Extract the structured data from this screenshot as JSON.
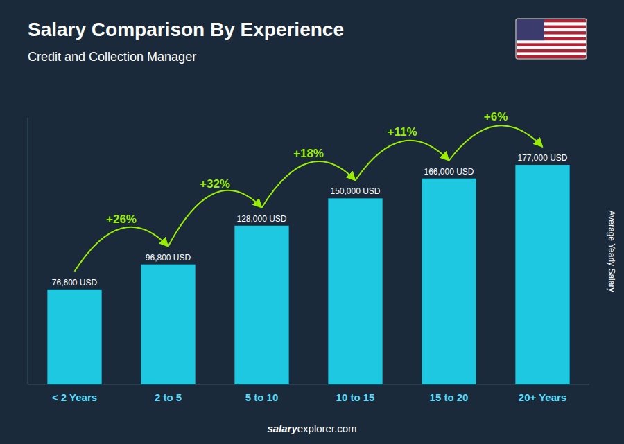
{
  "chart_data": {
    "type": "bar",
    "title": "Salary Comparison By Experience",
    "subtitle": "Credit and Collection Manager",
    "y_label": "Average Yearly Salary",
    "categories": [
      "< 2 Years",
      "2 to 5",
      "5 to 10",
      "10 to 15",
      "15 to 20",
      "20+ Years"
    ],
    "values": [
      76600,
      96800,
      128000,
      150000,
      166000,
      177000
    ],
    "value_labels": [
      "76,600 USD",
      "96,800 USD",
      "128,000 USD",
      "150,000 USD",
      "166,000 USD",
      "177,000 USD"
    ],
    "data_labels": true,
    "annotations": [
      "+26%",
      "+32%",
      "+18%",
      "+11%",
      "+6%"
    ],
    "footer": [
      "salary",
      "explorer.com"
    ],
    "color": "#1ec8e0",
    "ylim": [
      0,
      215000
    ],
    "tick_labels": "x",
    "grid": false
  }
}
